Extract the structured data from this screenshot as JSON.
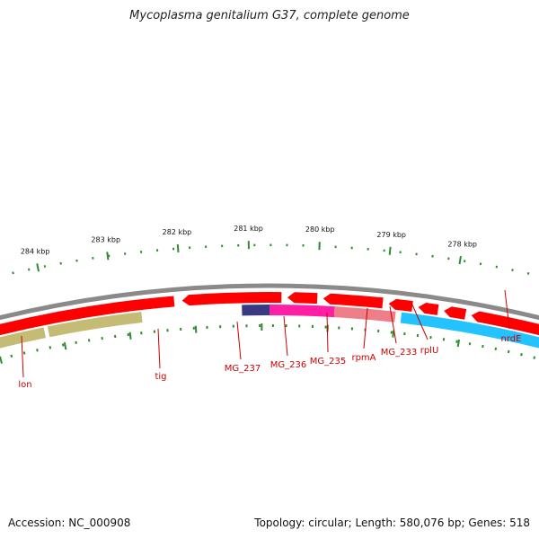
{
  "title": "Mycoplasma genitalium G37, complete genome",
  "footer": {
    "accession": "Accession: NC_000908",
    "summary": "Topology: circular; Length: 580,076 bp; Genes: 518"
  },
  "colors": {
    "backbone": "#8a8a8a",
    "forward_cds": "#ff0000",
    "ticks": "#2e8b2e",
    "label": "#cc0000",
    "olive": "#c4bc74",
    "navy": "#3a3a84",
    "magenta": "#ff1ea4",
    "salmon": "#ee7f88",
    "sky": "#22c3ff"
  },
  "ruler": [
    {
      "label": "284 kbp"
    },
    {
      "label": "283 kbp"
    },
    {
      "label": "282 kbp"
    },
    {
      "label": "281 kbp"
    },
    {
      "label": "280 kbp"
    },
    {
      "label": "279 kbp"
    },
    {
      "label": "278 kbp"
    }
  ],
  "genes": [
    {
      "label": "lon"
    },
    {
      "label": "tig"
    },
    {
      "label": "MG_237"
    },
    {
      "label": "MG_236"
    },
    {
      "label": "MG_235"
    },
    {
      "label": "rpmA"
    },
    {
      "label": "MG_233"
    },
    {
      "label": "rplU"
    },
    {
      "label": "nrdE"
    }
  ]
}
